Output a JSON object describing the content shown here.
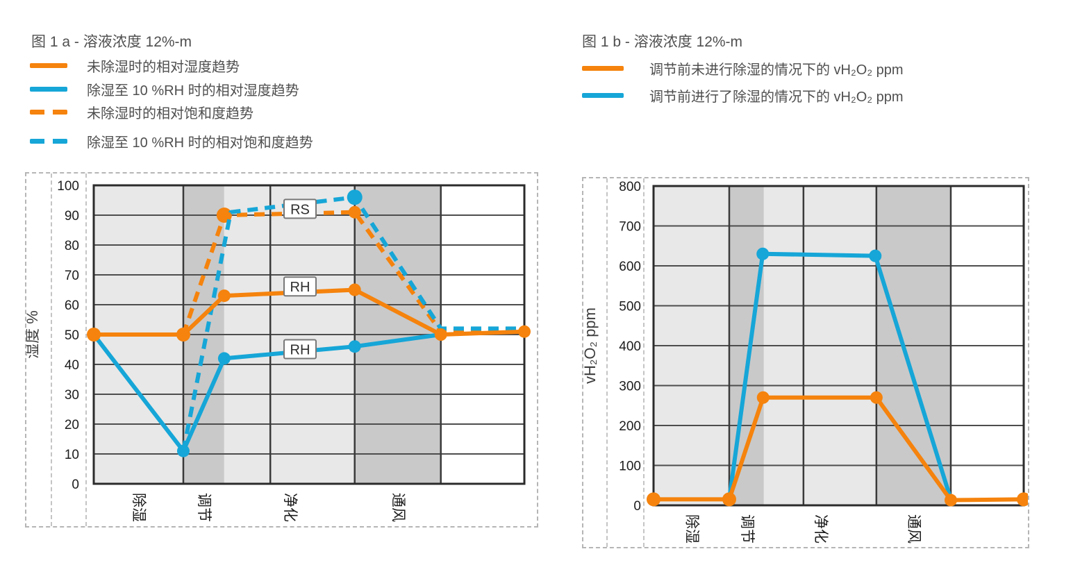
{
  "colors": {
    "orange": "#F5830D",
    "blue": "#16A6D7",
    "band_light": "#e8e8e8",
    "band_dark": "#c9c9c9",
    "grid": "#4d4d4d",
    "divider": "#3a3a3a",
    "plot_border": "#2b2b2b",
    "title_text": "#4f4f4f",
    "tick_text": "#1c1c1c"
  },
  "panels": [
    {
      "title": "图 1 a - 溶液浓度 12%-m",
      "legend": [
        {
          "color": "orange",
          "dash": false,
          "label": "未除湿时的相对湿度趋势"
        },
        {
          "color": "blue",
          "dash": false,
          "label": "除湿至 10 %RH 时的相对湿度趋势"
        },
        {
          "color": "orange",
          "dash": true,
          "label": "未除湿时的相对饱和度趋势"
        },
        {
          "color": "blue",
          "dash": true,
          "label": "除湿至 10 %RH 时的相对饱和度趋势"
        }
      ]
    },
    {
      "title": "图 1 b - 溶液浓度 12%-m",
      "legend": [
        {
          "color": "orange",
          "dash": false,
          "label": "调节前未进行除湿的情况下的 vH₂O₂ ppm"
        },
        {
          "color": "blue",
          "dash": false,
          "label": "调节前进行了除湿的情况下的 vH₂O₂ ppm"
        }
      ]
    }
  ],
  "chart_data": [
    {
      "type": "line",
      "title": "图 1 a - 溶液浓度 12%-m",
      "ylabel": "湿度 %",
      "ylim": [
        0,
        100
      ],
      "yticks": [
        0,
        10,
        20,
        30,
        40,
        50,
        60,
        70,
        80,
        90,
        100
      ],
      "grid": true,
      "phases": [
        {
          "label": "除湿",
          "f": 0.103
        },
        {
          "label": "调节",
          "f": 0.255
        },
        {
          "label": "净化",
          "f": 0.455
        },
        {
          "label": "通风",
          "f": 0.706
        }
      ],
      "bands": [
        {
          "f0": 0.0,
          "f1": 0.208,
          "tone": "light"
        },
        {
          "f0": 0.208,
          "f1": 0.303,
          "tone": "dark"
        },
        {
          "f0": 0.303,
          "f1": 0.606,
          "tone": "light"
        },
        {
          "f0": 0.606,
          "f1": 0.806,
          "tone": "dark"
        },
        {
          "f0": 0.806,
          "f1": 1.0,
          "tone": "white"
        }
      ],
      "dividers": [
        0.208,
        0.41,
        0.606,
        0.806
      ],
      "series": [
        {
          "name": "未除湿时的相对饱和度趋势 (RS)",
          "color": "orange",
          "dash": true,
          "x": [
            0.208,
            0.303,
            0.606,
            0.806,
            1.0
          ],
          "y": [
            50,
            90,
            91,
            51,
            52
          ],
          "markers": [
            {
              "i": 1,
              "r": 11
            },
            {
              "i": 2,
              "r": 9
            }
          ]
        },
        {
          "name": "除湿至 10 %RH 时的相对饱和度趋势 (RS)",
          "color": "blue",
          "dash": true,
          "x": [
            0.208,
            0.318,
            0.606,
            0.806,
            1.0
          ],
          "y": [
            11,
            91,
            96,
            52,
            52
          ],
          "markers": [
            {
              "i": 2,
              "r": 11
            }
          ]
        },
        {
          "name": "除湿至 10 %RH 时的相对湿度趋势 (RH)",
          "color": "blue",
          "dash": false,
          "x": [
            0.0,
            0.208,
            0.303,
            0.606,
            0.806
          ],
          "y": [
            50,
            11,
            42,
            46,
            50
          ],
          "markers": [
            {
              "i": 1,
              "r": 9
            },
            {
              "i": 2,
              "r": 9
            },
            {
              "i": 3,
              "r": 9
            }
          ]
        },
        {
          "name": "未除湿时的相对湿度趋势 (RH)",
          "color": "orange",
          "dash": false,
          "x": [
            0.0,
            0.208,
            0.303,
            0.606,
            0.806,
            1.0
          ],
          "y": [
            50,
            50,
            63,
            65,
            50,
            51
          ],
          "markers": [
            {
              "i": 0,
              "r": 10
            },
            {
              "i": 1,
              "r": 10
            },
            {
              "i": 2,
              "r": 9
            },
            {
              "i": 3,
              "r": 9
            },
            {
              "i": 4,
              "r": 9
            },
            {
              "i": 5,
              "r": 9
            }
          ]
        }
      ],
      "annotations": [
        {
          "text": "RS",
          "f": 0.479,
          "v": 92
        },
        {
          "text": "RH",
          "f": 0.479,
          "v": 66
        },
        {
          "text": "RH",
          "f": 0.479,
          "v": 45
        }
      ]
    },
    {
      "type": "line",
      "title": "图 1 b - 溶液浓度 12%-m",
      "ylabel": "vH₂O₂ ppm",
      "ylim": [
        0,
        800
      ],
      "yticks": [
        0,
        100,
        200,
        300,
        400,
        500,
        600,
        700,
        800
      ],
      "grid": true,
      "phases": [
        {
          "label": "除湿",
          "f": 0.102
        },
        {
          "label": "调节",
          "f": 0.251
        },
        {
          "label": "净化",
          "f": 0.45
        },
        {
          "label": "通风",
          "f": 0.702
        }
      ],
      "bands": [
        {
          "f0": 0.0,
          "f1": 0.2045,
          "tone": "light"
        },
        {
          "f0": 0.2045,
          "f1": 0.298,
          "tone": "dark"
        },
        {
          "f0": 0.298,
          "f1": 0.602,
          "tone": "light"
        },
        {
          "f0": 0.602,
          "f1": 0.803,
          "tone": "dark"
        },
        {
          "f0": 0.803,
          "f1": 1.0,
          "tone": "white"
        }
      ],
      "dividers": [
        0.2045,
        0.405,
        0.602,
        0.803
      ],
      "series": [
        {
          "name": "调节前进行了除湿的情况下的 vH₂O₂ ppm",
          "color": "blue",
          "dash": false,
          "x": [
            0.2045,
            0.295,
            0.599,
            0.803
          ],
          "y": [
            15,
            630,
            625,
            15
          ],
          "markers": [
            {
              "i": 1,
              "r": 9
            },
            {
              "i": 2,
              "r": 9
            }
          ]
        },
        {
          "name": "调节前未进行除湿的情况下的 vH₂O₂ ppm",
          "color": "orange",
          "dash": false,
          "x": [
            0.0,
            0.2045,
            0.296,
            0.602,
            0.803,
            1.0
          ],
          "y": [
            15,
            15,
            270,
            270,
            13,
            15
          ],
          "markers": [
            {
              "i": 0,
              "r": 10
            },
            {
              "i": 1,
              "r": 10
            },
            {
              "i": 2,
              "r": 9
            },
            {
              "i": 3,
              "r": 9
            },
            {
              "i": 4,
              "r": 9
            },
            {
              "i": 5,
              "r": 10
            }
          ]
        }
      ],
      "annotations": []
    }
  ]
}
